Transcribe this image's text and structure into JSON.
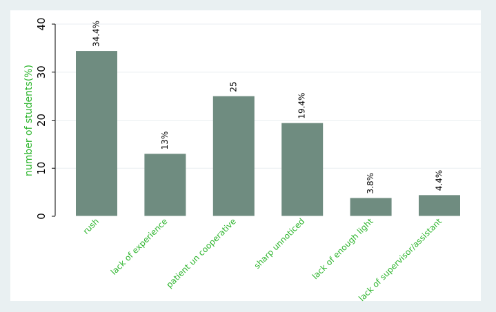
{
  "chart_data": {
    "type": "bar",
    "ylabel": "number of students(%)",
    "categories": [
      "rush",
      "lack of experience",
      "patient un cooperative",
      "sharp unnoticed",
      "lack of enough light",
      "lack of supervisor/assistant"
    ],
    "values": [
      34.4,
      13,
      25,
      19.4,
      3.8,
      4.4
    ],
    "value_labels": [
      "34.4%",
      "13%",
      "25",
      "19.4%",
      "3.8%",
      "4.4%"
    ],
    "color": "#6f8c80",
    "ylim": [
      0,
      40
    ],
    "yticks": [
      0,
      10,
      20,
      30,
      40
    ],
    "grid": true
  }
}
